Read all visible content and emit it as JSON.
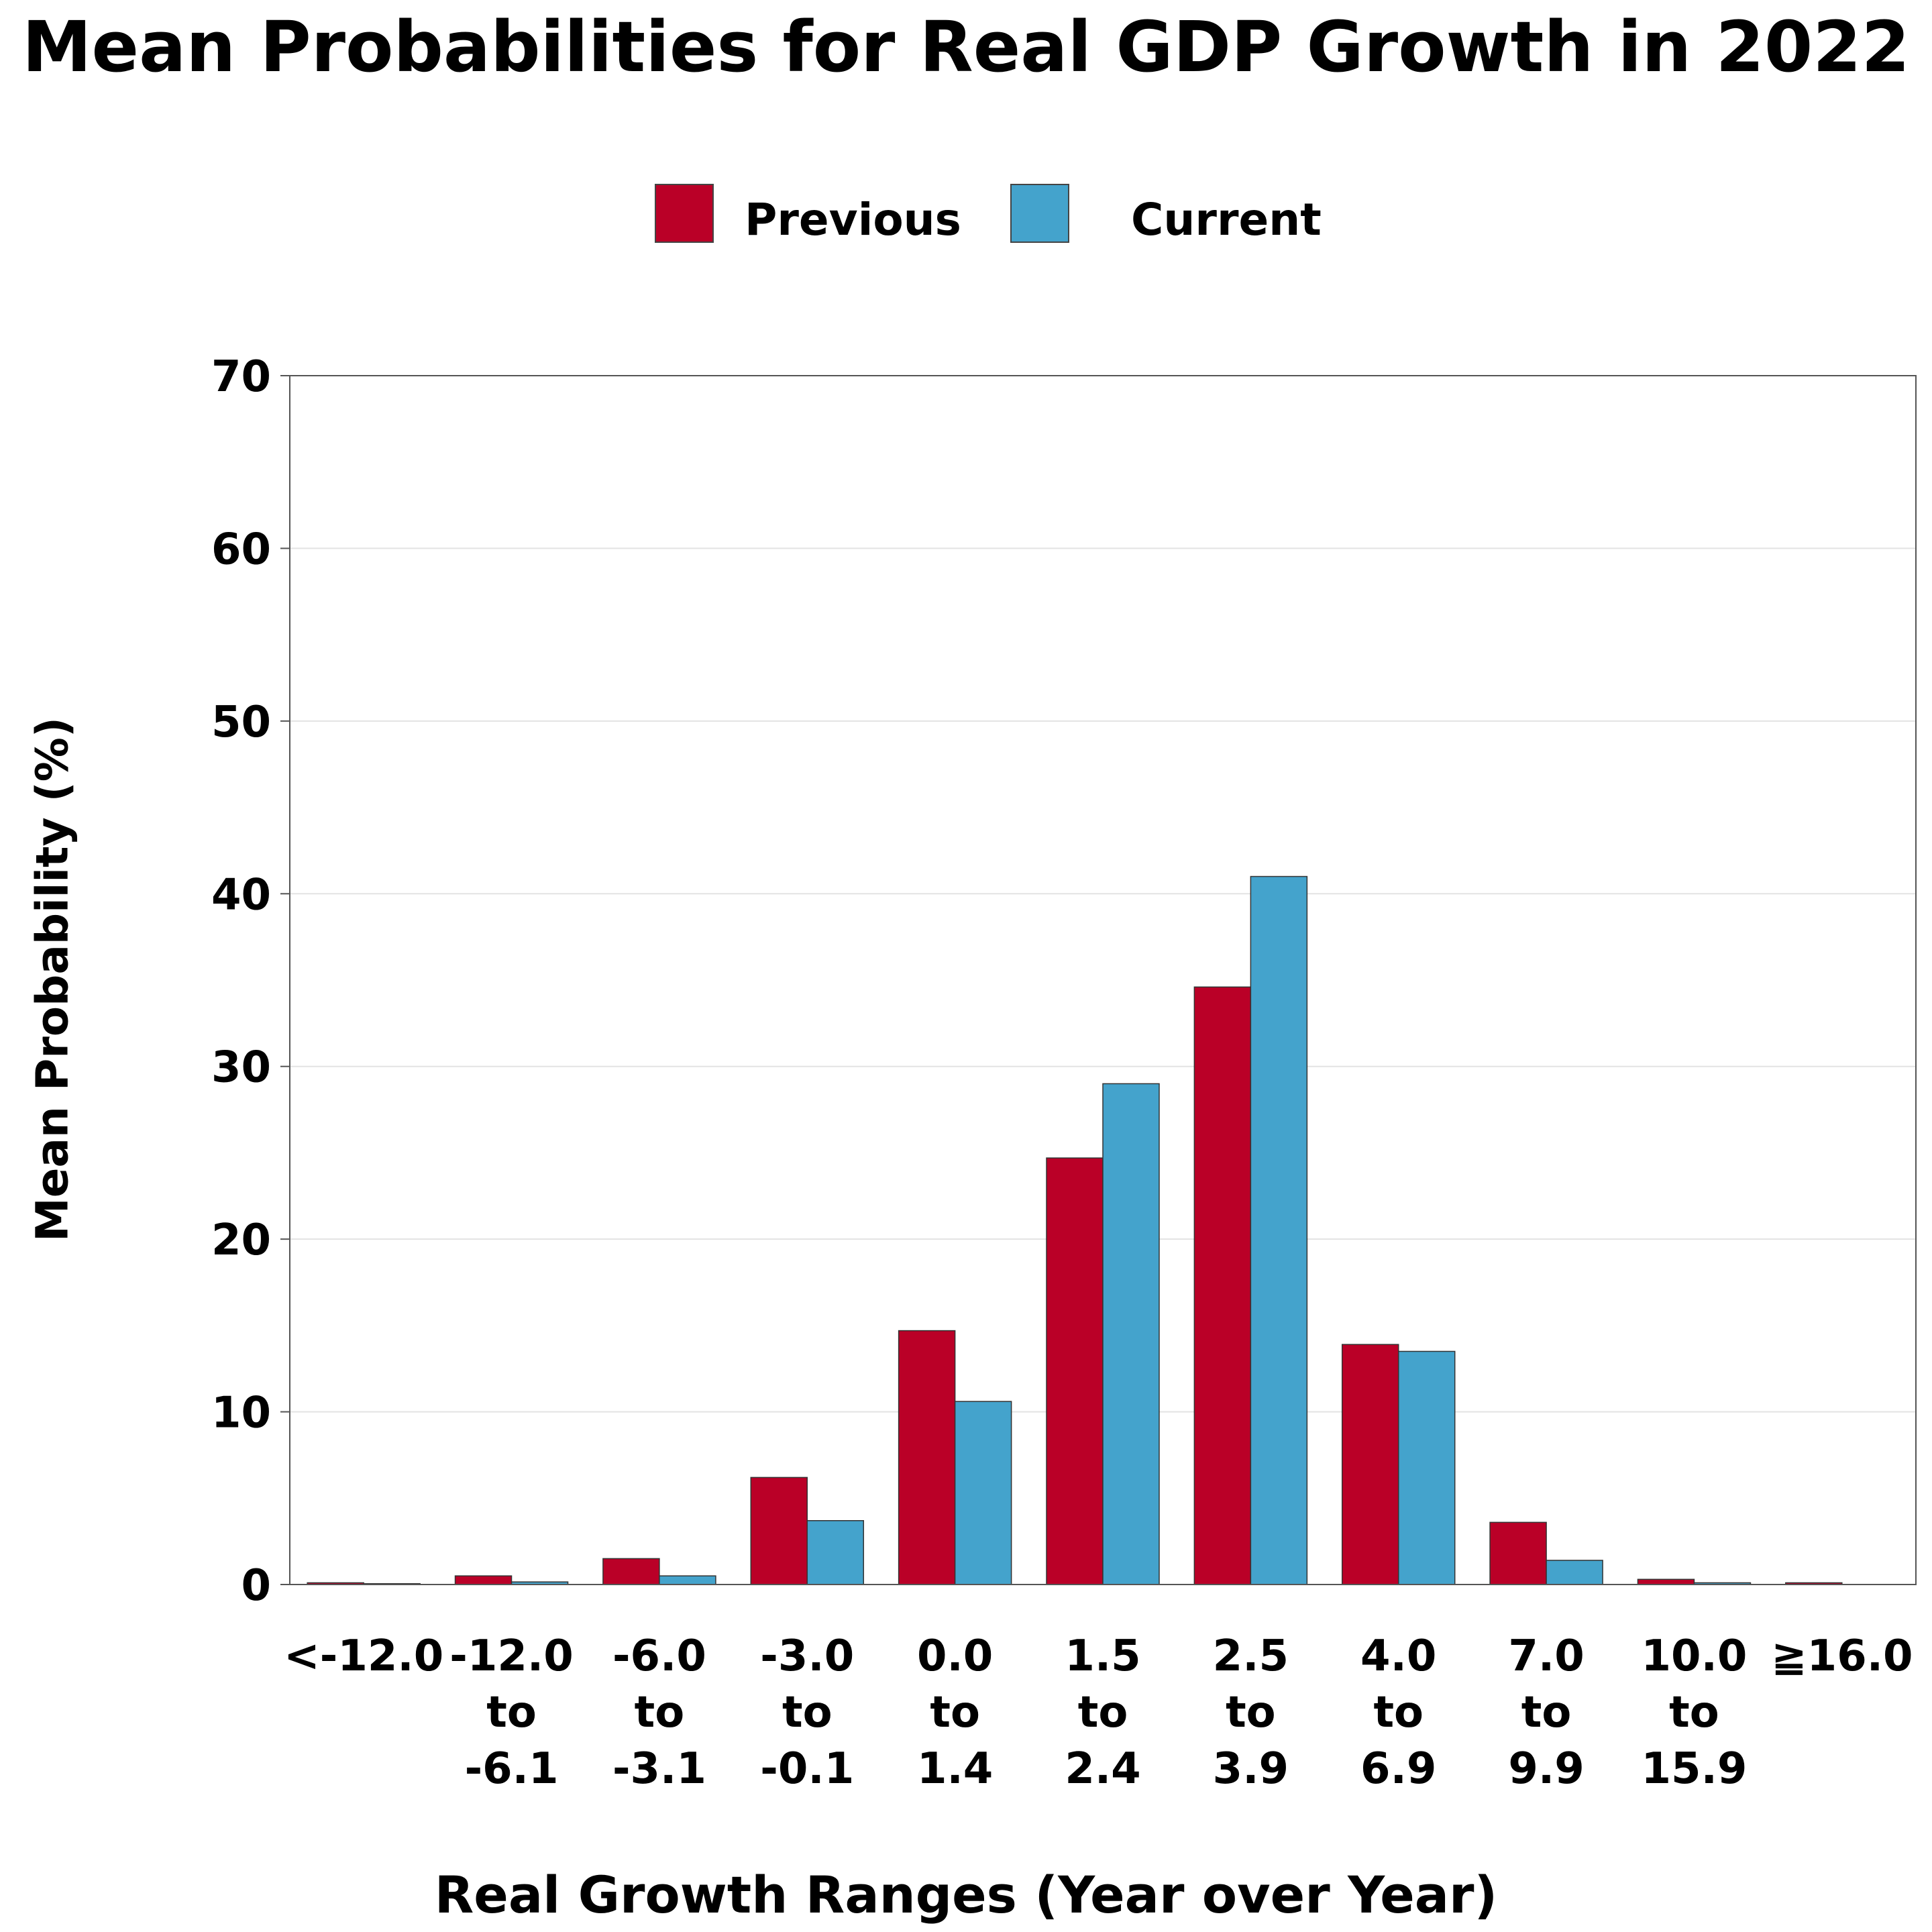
{
  "chart_data": {
    "type": "bar",
    "title": "Mean Probabilities for Real GDP Growth in 2022",
    "xlabel": "Real Growth Ranges (Year over Year)",
    "ylabel": "Mean Probability (%)",
    "ylim": [
      0,
      70
    ],
    "yticks": [
      "0",
      "10",
      "20",
      "30",
      "40",
      "50",
      "60",
      "70"
    ],
    "grid": true,
    "legend_position": "top-center",
    "categories": [
      [
        "<-12.0"
      ],
      [
        "-12.0",
        "to",
        "-6.1"
      ],
      [
        "-6.0",
        "to",
        "-3.1"
      ],
      [
        "-3.0",
        "to",
        "-0.1"
      ],
      [
        "0.0",
        "to",
        "1.4"
      ],
      [
        "1.5",
        "to",
        "2.4"
      ],
      [
        "2.5",
        "to",
        "3.9"
      ],
      [
        "4.0",
        "to",
        "6.9"
      ],
      [
        "7.0",
        "to",
        "9.9"
      ],
      [
        "10.0",
        "to",
        "15.9"
      ],
      [
        "≧16.0"
      ]
    ],
    "series": [
      {
        "name": "Previous",
        "color": "#BA0027",
        "values": [
          0.1,
          0.5,
          1.5,
          6.2,
          14.7,
          24.7,
          34.6,
          13.9,
          3.6,
          0.3,
          0.1
        ]
      },
      {
        "name": "Current",
        "color": "#44A3CC",
        "values": [
          0.05,
          0.15,
          0.5,
          3.7,
          10.6,
          29.0,
          41.0,
          13.5,
          1.4,
          0.1,
          0.0
        ]
      }
    ]
  }
}
